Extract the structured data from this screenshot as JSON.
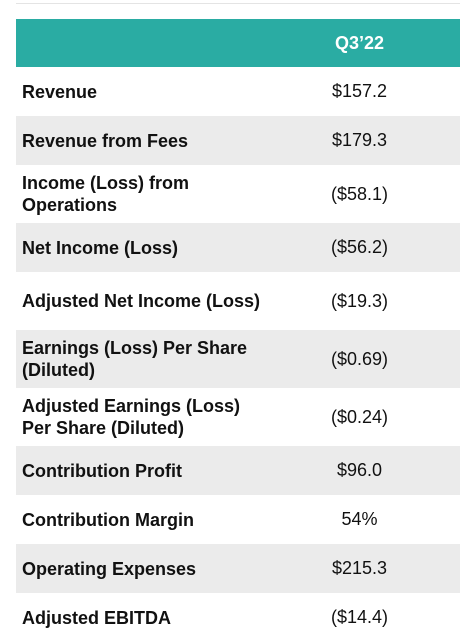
{
  "table": {
    "column_header": "Q3’22",
    "rows": [
      {
        "label": "Revenue",
        "value": "$157.2"
      },
      {
        "label": "Revenue from Fees",
        "value": "$179.3"
      },
      {
        "label": "Income (Loss) from Operations",
        "value": "($58.1)"
      },
      {
        "label": "Net Income (Loss)",
        "value": "($56.2)"
      },
      {
        "label": "Adjusted Net Income (Loss)",
        "value": "($19.3)"
      },
      {
        "label": "Earnings (Loss) Per Share (Diluted)",
        "value": "($0.69)"
      },
      {
        "label": "Adjusted Earnings (Loss) Per Share (Diluted)",
        "value": "($0.24)"
      },
      {
        "label": "Contribution Profit",
        "value": "$96.0"
      },
      {
        "label": "Contribution Margin",
        "value": "54%"
      },
      {
        "label": "Operating Expenses",
        "value": "$215.3"
      },
      {
        "label": "Adjusted EBITDA",
        "value": "($14.4)"
      }
    ]
  }
}
